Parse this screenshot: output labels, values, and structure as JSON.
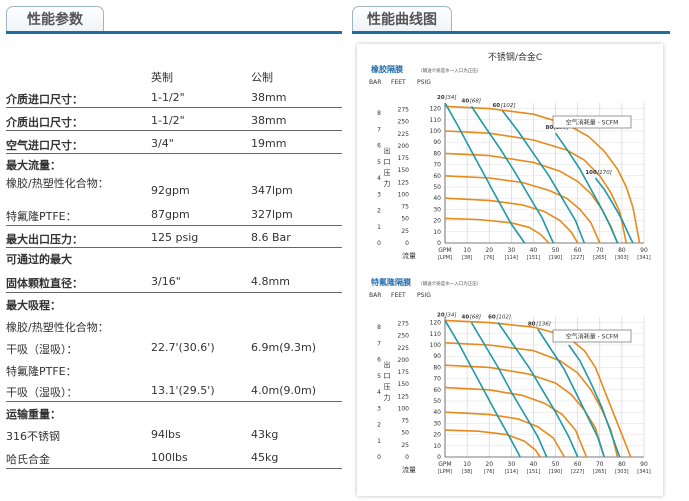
{
  "tabs": {
    "left": "性能参数",
    "right": "性能曲线图"
  },
  "table": {
    "col_imperial": "英制",
    "col_metric": "公制",
    "rows": [
      {
        "label": "介质进口尺寸：",
        "imp": "1-1/2\"",
        "met": "38mm"
      },
      {
        "label": "介质出口尺寸：",
        "imp": "1-1/2\"",
        "met": "38mm"
      },
      {
        "label": "空气进口尺寸：",
        "imp": "3/4\"",
        "met": "19mm"
      },
      {
        "label": "最大流量：",
        "imp": "",
        "met": ""
      },
      {
        "label": "橡胶/热塑性化合物：",
        "imp": "92gpm",
        "met": "347lpm"
      },
      {
        "label": "特氟隆PTFE：",
        "imp": "87gpm",
        "met": "327lpm"
      },
      {
        "label": "最大出口压力：",
        "imp": "125 psig",
        "met": "8.6 Bar"
      },
      {
        "label": "可通过的最大",
        "imp": "",
        "met": ""
      },
      {
        "label": "固体颗粒直径：",
        "imp": "3/16\"",
        "met": "4.8mm"
      },
      {
        "label": "最大吸程：",
        "imp": "",
        "met": ""
      },
      {
        "label": "橡胶/热塑性化合物：",
        "imp": "",
        "met": ""
      },
      {
        "label": "干吸（湿吸）：",
        "imp": "22.7'(30.6')",
        "met": "6.9m(9.3m)"
      },
      {
        "label": "特氟隆PTFE：",
        "imp": "",
        "met": ""
      },
      {
        "label": "干吸（湿吸）：",
        "imp": "13.1'(29.5')",
        "met": "4.0m(9.0m)"
      },
      {
        "label": "运输重量：",
        "imp": "",
        "met": ""
      },
      {
        "label": "316不锈钢",
        "imp": "94lbs",
        "met": "43kg"
      },
      {
        "label": "哈氏合金",
        "imp": "100lbs",
        "met": "45kg"
      }
    ]
  },
  "chart_data": {
    "title": "不锈钢/合金C",
    "axis_units": {
      "bar": "BAR",
      "feet": "FEET",
      "psig": "PSIG",
      "gpm": "GPM",
      "lpm": "[LPM]"
    },
    "ylabel": "出口压力",
    "xlabel": "流量",
    "bar_ticks": [
      "8",
      "7",
      "6",
      "5",
      "4",
      "3",
      "2",
      "1",
      "0"
    ],
    "feet_ticks": [
      "275",
      "250",
      "225",
      "200",
      "175",
      "150",
      "125",
      "100",
      "75",
      "50",
      "25",
      "0"
    ],
    "psig_ticks": [
      "120",
      "110",
      "100",
      "90",
      "80",
      "70",
      "60",
      "50",
      "40",
      "30",
      "20",
      "10",
      "0"
    ],
    "gpm_ticks": [
      "0",
      "10",
      "20",
      "30",
      "40",
      "50",
      "60",
      "70",
      "80",
      "90"
    ],
    "lpm_ticks": [
      "[0]",
      "[38]",
      "[76]",
      "[114]",
      "[151]",
      "[190]",
      "[227]",
      "[265]",
      "[303]",
      "[341]"
    ],
    "colors": {
      "orange": "#e8891a",
      "teal": "#1f98a8",
      "title_blue": "#2a6fb0"
    },
    "charts": [
      {
        "subtitle": "橡胶隔膜",
        "note": "(输送介质是水一入口为正压)",
        "legend": "空气消耗量 - SCFM",
        "air_labels": [
          {
            "value": "20",
            "lpm": "[34]"
          },
          {
            "value": "40",
            "lpm": "[68]"
          },
          {
            "value": "60",
            "lpm": "[102]"
          },
          {
            "value": "80",
            "lpm": "[136]"
          },
          {
            "value": "100",
            "lpm": "[170]"
          }
        ],
        "orange_curves": [
          [
            [
              0,
              122
            ],
            [
              20,
              120
            ],
            [
              40,
              115
            ],
            [
              55,
              106
            ],
            [
              65,
              95
            ],
            [
              72,
              82
            ],
            [
              78,
              66
            ],
            [
              82,
              50
            ],
            [
              85,
              32
            ],
            [
              88,
              0
            ]
          ],
          [
            [
              0,
              100
            ],
            [
              20,
              98
            ],
            [
              40,
              92
            ],
            [
              55,
              83
            ],
            [
              63,
              74
            ],
            [
              70,
              60
            ],
            [
              75,
              45
            ],
            [
              79,
              28
            ],
            [
              82,
              0
            ]
          ],
          [
            [
              0,
              80
            ],
            [
              20,
              78
            ],
            [
              40,
              72
            ],
            [
              52,
              64
            ],
            [
              60,
              55
            ],
            [
              66,
              44
            ],
            [
              71,
              30
            ],
            [
              75,
              15
            ],
            [
              78,
              0
            ]
          ],
          [
            [
              0,
              60
            ],
            [
              20,
              58
            ],
            [
              35,
              54
            ],
            [
              47,
              47
            ],
            [
              55,
              40
            ],
            [
              61,
              30
            ],
            [
              66,
              18
            ],
            [
              70,
              0
            ]
          ],
          [
            [
              0,
              40
            ],
            [
              20,
              38
            ],
            [
              35,
              34
            ],
            [
              45,
              28
            ],
            [
              52,
              20
            ],
            [
              57,
              10
            ],
            [
              60,
              0
            ]
          ],
          [
            [
              0,
              22
            ],
            [
              15,
              21
            ],
            [
              30,
              18
            ],
            [
              38,
              14
            ],
            [
              43,
              8
            ],
            [
              47,
              0
            ]
          ]
        ],
        "teal_curves": [
          [
            [
              0,
              125
            ],
            [
              6,
              104
            ],
            [
              12,
              82
            ],
            [
              18,
              60
            ],
            [
              24,
              38
            ],
            [
              30,
              17
            ],
            [
              36,
              0
            ]
          ],
          [
            [
              12,
              122
            ],
            [
              18,
              104
            ],
            [
              25,
              84
            ],
            [
              32,
              62
            ],
            [
              38,
              42
            ],
            [
              44,
              22
            ],
            [
              49,
              0
            ]
          ],
          [
            [
              26,
              118
            ],
            [
              33,
              100
            ],
            [
              40,
              80
            ],
            [
              47,
              60
            ],
            [
              53,
              40
            ],
            [
              59,
              20
            ],
            [
              63,
              0
            ]
          ],
          [
            [
              50,
              98
            ],
            [
              55,
              84
            ],
            [
              61,
              66
            ],
            [
              66,
              48
            ],
            [
              71,
              30
            ],
            [
              75,
              14
            ],
            [
              78,
              0
            ]
          ],
          [
            [
              68,
              58
            ],
            [
              72,
              48
            ],
            [
              76,
              35
            ],
            [
              80,
              21
            ],
            [
              83,
              8
            ],
            [
              85,
              0
            ]
          ]
        ]
      },
      {
        "subtitle": "特氟隆隔膜",
        "note": "(输送介质是水一入口为正压)",
        "legend": "空气消耗量 - SCFM",
        "air_labels": [
          {
            "value": "20",
            "lpm": "[34]"
          },
          {
            "value": "40",
            "lpm": "[68]"
          },
          {
            "value": "60",
            "lpm": "[102]"
          },
          {
            "value": "80",
            "lpm": "[136]"
          },
          {
            "value": "100",
            "lpm": "[170]"
          }
        ],
        "orange_curves": [
          [
            [
              0,
              122
            ],
            [
              20,
              120
            ],
            [
              40,
              116
            ],
            [
              55,
              108
            ],
            [
              63,
              95
            ],
            [
              68,
              80
            ],
            [
              72,
              60
            ],
            [
              76,
              40
            ],
            [
              80,
              20
            ],
            [
              84,
              0
            ]
          ],
          [
            [
              0,
              102
            ],
            [
              20,
              100
            ],
            [
              40,
              95
            ],
            [
              52,
              86
            ],
            [
              60,
              75
            ],
            [
              66,
              60
            ],
            [
              71,
              42
            ],
            [
              75,
              24
            ],
            [
              78,
              0
            ]
          ],
          [
            [
              0,
              82
            ],
            [
              20,
              80
            ],
            [
              38,
              74
            ],
            [
              50,
              66
            ],
            [
              57,
              56
            ],
            [
              63,
              42
            ],
            [
              68,
              26
            ],
            [
              72,
              0
            ]
          ],
          [
            [
              0,
              62
            ],
            [
              20,
              60
            ],
            [
              35,
              55
            ],
            [
              45,
              48
            ],
            [
              53,
              38
            ],
            [
              59,
              24
            ],
            [
              64,
              0
            ]
          ],
          [
            [
              0,
              40
            ],
            [
              20,
              38
            ],
            [
              33,
              34
            ],
            [
              42,
              27
            ],
            [
              49,
              17
            ],
            [
              54,
              0
            ]
          ],
          [
            [
              0,
              24
            ],
            [
              15,
              23
            ],
            [
              28,
              20
            ],
            [
              36,
              14
            ],
            [
              41,
              6
            ],
            [
              43,
              0
            ]
          ]
        ],
        "teal_curves": [
          [
            [
              0,
              122
            ],
            [
              6,
              102
            ],
            [
              12,
              80
            ],
            [
              18,
              58
            ],
            [
              24,
              36
            ],
            [
              30,
              15
            ],
            [
              34,
              0
            ]
          ],
          [
            [
              12,
              120
            ],
            [
              18,
              100
            ],
            [
              24,
              80
            ],
            [
              30,
              58
            ],
            [
              36,
              38
            ],
            [
              42,
              18
            ],
            [
              46,
              0
            ]
          ],
          [
            [
              24,
              120
            ],
            [
              31,
              100
            ],
            [
              38,
              80
            ],
            [
              44,
              60
            ],
            [
              50,
              40
            ],
            [
              56,
              18
            ],
            [
              60,
              0
            ]
          ],
          [
            [
              42,
              114
            ],
            [
              48,
              96
            ],
            [
              54,
              78
            ],
            [
              59,
              58
            ],
            [
              64,
              38
            ],
            [
              69,
              18
            ],
            [
              72,
              0
            ]
          ],
          [
            [
              56,
              100
            ],
            [
              61,
              86
            ],
            [
              66,
              66
            ],
            [
              71,
              44
            ],
            [
              75,
              22
            ],
            [
              79,
              0
            ]
          ]
        ]
      }
    ]
  }
}
